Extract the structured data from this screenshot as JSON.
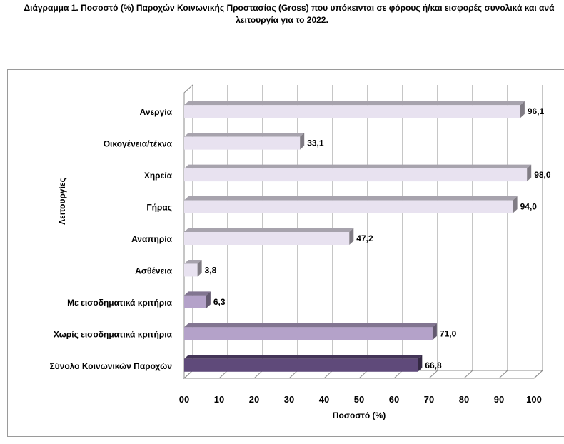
{
  "title_line1": "Διάγραμμα 1. Ποσοστό (%) Παροχών Κοινωνικής Προστασίας (Gross) που υπόκεινται σε φόρους ή/και εισφορές συνολικά και ανά",
  "title_line2": "λειτουργία για το 2022.",
  "chart_data": {
    "type": "bar",
    "orientation": "horizontal",
    "style": "3d",
    "title": "Διάγραμμα 1. Ποσοστό (%) Παροχών Κοινωνικής Προστασίας (Gross) που υπόκεινται σε φόρους ή/και εισφορές συνολικά και ανά λειτουργία για το 2022.",
    "xlabel": "Ποσοστό (%)",
    "ylabel": "Λειτουργίες",
    "xlim": [
      0,
      100
    ],
    "xticks": [
      "00",
      "10",
      "20",
      "30",
      "40",
      "50",
      "60",
      "70",
      "80",
      "90",
      "100"
    ],
    "grid": true,
    "legend": "none",
    "categories": [
      "Ανεργία",
      "Οικογένεια/τέκνα",
      "Χηρεία",
      "Γήρας",
      "Αναπηρία",
      "Ασθένεια",
      "Με εισοδηματικά κριτήρια",
      "Χωρίς εισοδηματικά κριτήρια",
      "Σύνολο Κοινωνικών Παροχών"
    ],
    "values": [
      96.1,
      33.1,
      98.0,
      94.0,
      47.2,
      3.8,
      6.3,
      71.0,
      66.8
    ],
    "value_labels": [
      "96,1",
      "33,1",
      "98,0",
      "94,0",
      "47,2",
      "3,8",
      "6,3",
      "71,0",
      "66,8"
    ],
    "colors": [
      "#e8e2f0",
      "#e8e2f0",
      "#e8e2f0",
      "#e8e2f0",
      "#e8e2f0",
      "#e8e2f0",
      "#b4a2c9",
      "#b4a2c9",
      "#5f4a7a"
    ]
  }
}
